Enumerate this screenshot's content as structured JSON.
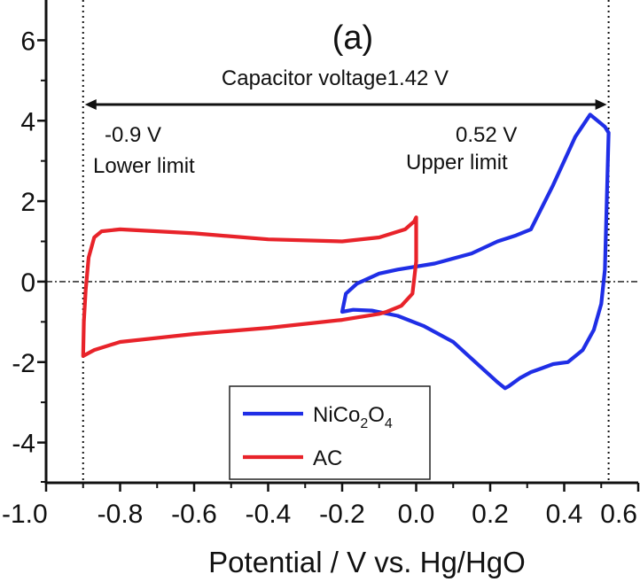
{
  "chart_data": {
    "type": "line",
    "panel_label": "(a)",
    "title": "",
    "xlabel": "Potential / V vs. Hg/HgO",
    "ylabel": "",
    "xlim": [
      -1.0,
      0.6
    ],
    "ylim": [
      -5,
      7
    ],
    "xticks": [
      -1.0,
      -0.8,
      -0.6,
      -0.4,
      -0.2,
      0.0,
      0.2,
      0.4,
      0.6
    ],
    "xtick_labels": [
      "-1.0",
      "-0.8",
      "-0.6",
      "-0.4",
      "-0.2",
      "0.0",
      "0.2",
      "0.4",
      "0.6"
    ],
    "yticks": [
      -4,
      -2,
      0,
      2,
      4,
      6
    ],
    "ytick_labels": [
      "-4",
      "-2",
      "0",
      "2",
      "4",
      "6"
    ],
    "grid": false,
    "legend": {
      "placement": "bottom-center",
      "entries": [
        {
          "name_main": "NiCo",
          "sub1": "2",
          "mid": "O",
          "sub2": "4",
          "color": "#1f2ee6"
        },
        {
          "name_main": "AC",
          "sub1": "",
          "mid": "",
          "sub2": "",
          "color": "#e8232a"
        }
      ]
    },
    "annotations": {
      "capacitor_voltage": "Capacitor voltage1.42 V",
      "lower_value": "-0.9 V",
      "lower_text": "Lower limit",
      "upper_value": "0.52 V",
      "upper_text": "Upper limit",
      "lower_limit_x": -0.9,
      "upper_limit_x": 0.52
    },
    "series": [
      {
        "name": "NiCo2O4",
        "color": "#1f2ee6",
        "x": [
          -0.2,
          -0.19,
          -0.16,
          -0.1,
          -0.05,
          0.05,
          0.15,
          0.22,
          0.27,
          0.31,
          0.37,
          0.43,
          0.47,
          0.49,
          0.51,
          0.52,
          0.515,
          0.51,
          0.5,
          0.48,
          0.45,
          0.41,
          0.37,
          0.34,
          0.31,
          0.28,
          0.25,
          0.24,
          0.22,
          0.16,
          0.1,
          0.02,
          -0.05,
          -0.12,
          -0.17,
          -0.2
        ],
        "y": [
          -0.75,
          -0.3,
          -0.05,
          0.2,
          0.3,
          0.45,
          0.7,
          1.0,
          1.15,
          1.3,
          2.4,
          3.6,
          4.15,
          4.0,
          3.85,
          3.7,
          2.0,
          0.3,
          -0.55,
          -1.2,
          -1.7,
          -2.0,
          -2.05,
          -2.15,
          -2.25,
          -2.4,
          -2.6,
          -2.65,
          -2.5,
          -2.0,
          -1.5,
          -1.1,
          -0.85,
          -0.72,
          -0.7,
          -0.75
        ]
      },
      {
        "name": "AC",
        "color": "#e8232a",
        "x": [
          -0.9,
          -0.898,
          -0.893,
          -0.885,
          -0.87,
          -0.85,
          -0.8,
          -0.6,
          -0.4,
          -0.2,
          -0.1,
          -0.03,
          -0.005,
          0.0,
          0.0,
          -0.01,
          -0.04,
          -0.08,
          -0.1,
          -0.2,
          -0.4,
          -0.6,
          -0.8,
          -0.87,
          -0.9
        ],
        "y": [
          -1.85,
          -1.0,
          -0.2,
          0.6,
          1.1,
          1.25,
          1.3,
          1.2,
          1.05,
          1.0,
          1.1,
          1.3,
          1.5,
          1.6,
          0.5,
          -0.3,
          -0.6,
          -0.75,
          -0.8,
          -0.95,
          -1.15,
          -1.3,
          -1.5,
          -1.7,
          -1.85
        ]
      }
    ]
  }
}
